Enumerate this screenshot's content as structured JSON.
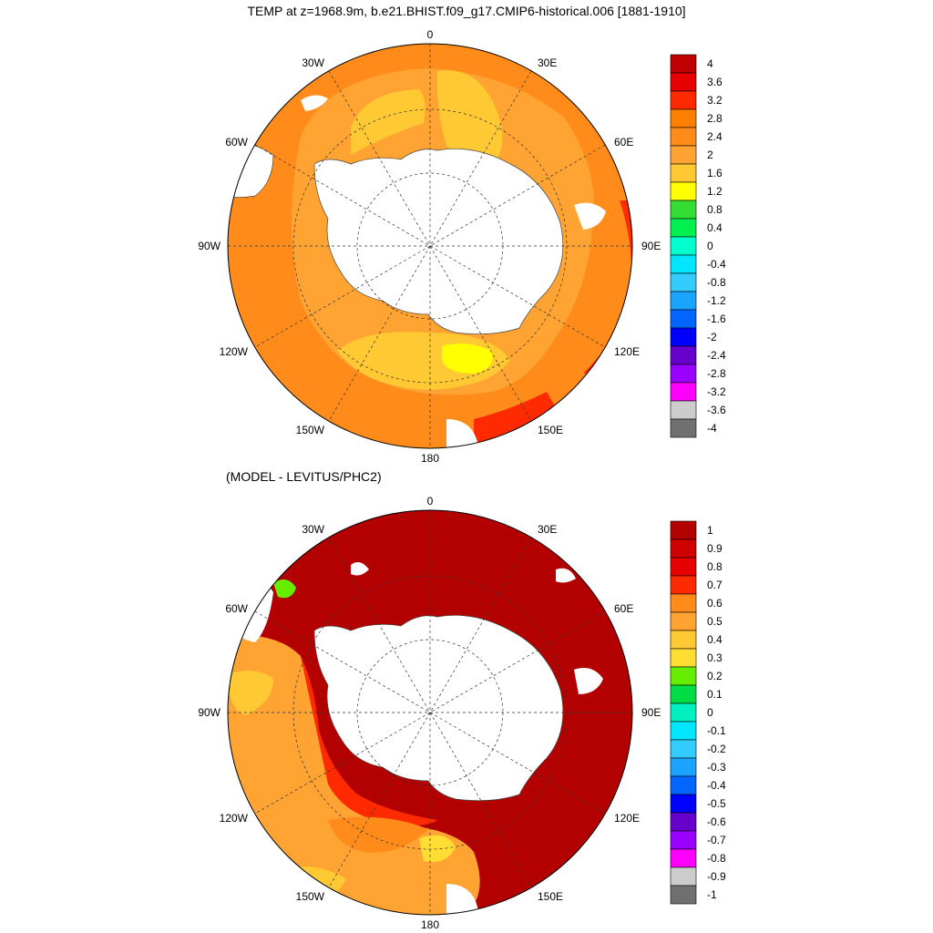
{
  "title": "TEMP at z=1968.9m, b.e21.BHIST.f09_g17.CMIP6-historical.006 [1881-1910]",
  "subtitle": "(MODEL - LEVITUS/PHC2)",
  "maps": [
    {
      "id": "model",
      "longitude_labels": [
        "0",
        "30E",
        "60E",
        "90E",
        "120E",
        "150E",
        "180",
        "150W",
        "120W",
        "90W",
        "60W",
        "30W"
      ],
      "colorbar": {
        "labels": [
          "4",
          "3.6",
          "3.2",
          "2.8",
          "2.4",
          "2",
          "1.6",
          "1.2",
          "0.8",
          "0.4",
          "0",
          "-0.4",
          "-0.8",
          "-1.2",
          "-1.6",
          "-2",
          "-2.4",
          "-2.8",
          "-3.2",
          "-3.6",
          "-4"
        ],
        "colors": [
          "#c00000",
          "#e60000",
          "#ff2a00",
          "#ff8000",
          "#ff8c1a",
          "#ffa333",
          "#ffc933",
          "#ffff00",
          "#33dd33",
          "#00f050",
          "#00ffcc",
          "#00e6ff",
          "#33ccff",
          "#1aa3ff",
          "#0066ff",
          "#0000ff",
          "#6600cc",
          "#9900ff",
          "#ff00ff",
          "#cccccc",
          "#707070"
        ]
      }
    },
    {
      "id": "difference",
      "longitude_labels": [
        "0",
        "30E",
        "60E",
        "90E",
        "120E",
        "150E",
        "180",
        "150W",
        "120W",
        "90W",
        "60W",
        "30W"
      ],
      "colorbar": {
        "labels": [
          "1",
          "0.9",
          "0.8",
          "0.7",
          "0.6",
          "0.5",
          "0.4",
          "0.3",
          "0.2",
          "0.1",
          "0",
          "-0.1",
          "-0.2",
          "-0.3",
          "-0.4",
          "-0.5",
          "-0.6",
          "-0.7",
          "-0.8",
          "-0.9",
          "-1"
        ],
        "colors": [
          "#b30000",
          "#d00000",
          "#e60000",
          "#ff2a00",
          "#ff8c1a",
          "#ffa333",
          "#ffc933",
          "#ffdd33",
          "#66ee00",
          "#00dd44",
          "#00f0c0",
          "#00e6ff",
          "#33ccff",
          "#1aa3ff",
          "#0066ff",
          "#0000ff",
          "#6600cc",
          "#9900ff",
          "#ff00ff",
          "#cccccc",
          "#707070"
        ]
      }
    }
  ]
}
